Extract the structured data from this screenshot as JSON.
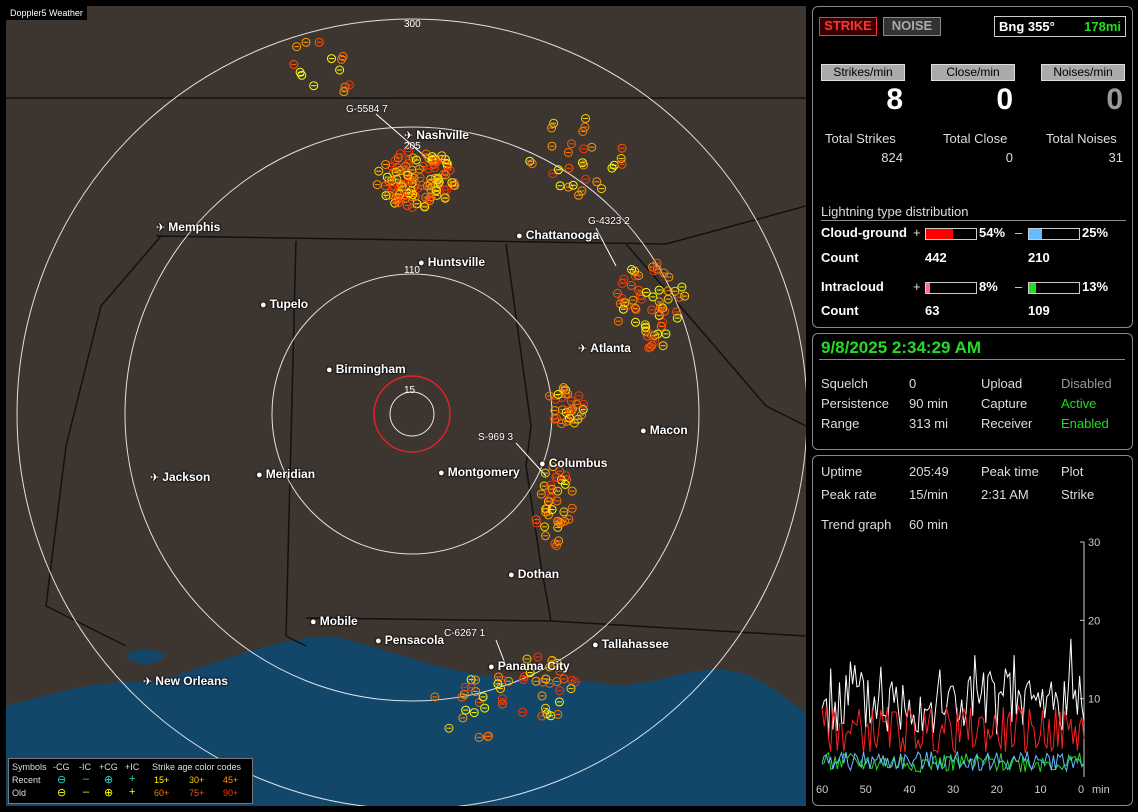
{
  "app": {
    "title": "Doppler5 Weather"
  },
  "map": {
    "range_labels": [
      "300",
      "205",
      "110",
      "15"
    ],
    "cities": [
      {
        "name": "Nashville",
        "airport": true
      },
      {
        "name": "Memphis",
        "airport": true
      },
      {
        "name": "Chattanooga",
        "airport": false
      },
      {
        "name": "Huntsville",
        "airport": false
      },
      {
        "name": "Tupelo",
        "airport": false
      },
      {
        "name": "Birmingham",
        "airport": false
      },
      {
        "name": "Atlanta",
        "airport": true
      },
      {
        "name": "Macon",
        "airport": false
      },
      {
        "name": "Columbus",
        "airport": false
      },
      {
        "name": "Montgomery",
        "airport": false
      },
      {
        "name": "Meridian",
        "airport": false
      },
      {
        "name": "Jackson",
        "airport": true
      },
      {
        "name": "Dothan",
        "airport": false
      },
      {
        "name": "Mobile",
        "airport": false
      },
      {
        "name": "Pensacola",
        "airport": false
      },
      {
        "name": "Tallahassee",
        "airport": false
      },
      {
        "name": "Panama City",
        "airport": false
      },
      {
        "name": "New Orleans",
        "airport": true
      }
    ],
    "storm_labels": [
      "G-5584 7",
      "G-4323 2",
      "S-969 3",
      "C-6267 1"
    ]
  },
  "legend": {
    "symbols_label": "Symbols",
    "headers": [
      "-CG",
      "-IC",
      "+CG",
      "+IC"
    ],
    "rows": [
      "Recent",
      "Old"
    ],
    "age_title": "Strike age color codes",
    "recent_ages": [
      "15+",
      "30+",
      "45+"
    ],
    "old_ages": [
      "60+",
      "75+",
      "90+"
    ],
    "age_colors": [
      "#ffff00",
      "#ffcc00",
      "#ff9900",
      "#ff7700",
      "#ff5500",
      "#ff3300"
    ]
  },
  "status": {
    "strike_btn": "STRIKE",
    "noise_btn": "NOISE",
    "bearing_label": "Bng 355°",
    "distance": "178mi"
  },
  "counters": {
    "strikes_min_label": "Strikes/min",
    "close_min_label": "Close/min",
    "noises_min_label": "Noises/min",
    "strikes_min": "8",
    "close_min": "0",
    "noises_min": "0",
    "total_strikes_label": "Total Strikes",
    "total_close_label": "Total Close",
    "total_noises_label": "Total Noises",
    "total_strikes": "824",
    "total_close": "0",
    "total_noises": "31"
  },
  "distribution": {
    "title": "Lightning type distribution",
    "cloud_ground_label": "Cloud-ground",
    "intracloud_label": "Intracloud",
    "count_label": "Count",
    "plus_sign": "+",
    "minus_sign": "–",
    "cg_pos_pct": "54%",
    "cg_pos_frac": 0.54,
    "cg_neg_pct": "25%",
    "cg_neg_frac": 0.25,
    "ic_pos_pct": "8%",
    "ic_pos_frac": 0.08,
    "ic_neg_pct": "13%",
    "ic_neg_frac": 0.13,
    "cg_pos_count": "442",
    "cg_neg_count": "210",
    "ic_pos_count": "63",
    "ic_neg_count": "109",
    "colors": {
      "cg_pos": "#ff0000",
      "cg_neg": "#66bbff",
      "ic_pos": "#ff66aa",
      "ic_neg": "#22dd22"
    }
  },
  "settings": {
    "datetime": "9/8/2025 2:34:29 AM",
    "squelch_label": "Squelch",
    "squelch": "0",
    "persistence_label": "Persistence",
    "persistence": "90 min",
    "range_label": "Range",
    "range": "313 mi",
    "upload_label": "Upload",
    "upload": "Disabled",
    "capture_label": "Capture",
    "capture": "Active",
    "receiver_label": "Receiver",
    "receiver": "Enabled",
    "active_color": "#22dd22"
  },
  "stats": {
    "uptime_label": "Uptime",
    "uptime": "205:49",
    "peak_time_label": "Peak time",
    "plot_label": "Plot",
    "peak_rate_label": "Peak rate",
    "peak_rate": "15/min",
    "peak_time": "2:31 AM",
    "plot": "Strike",
    "trend_label": "Trend graph",
    "trend": "60 min"
  },
  "chart_data": {
    "type": "line",
    "x": [
      60,
      50,
      40,
      30,
      20,
      10,
      0
    ],
    "x_unit": "min",
    "ylim": [
      0,
      30
    ],
    "y_ticks": [
      10,
      20,
      30
    ]
  }
}
